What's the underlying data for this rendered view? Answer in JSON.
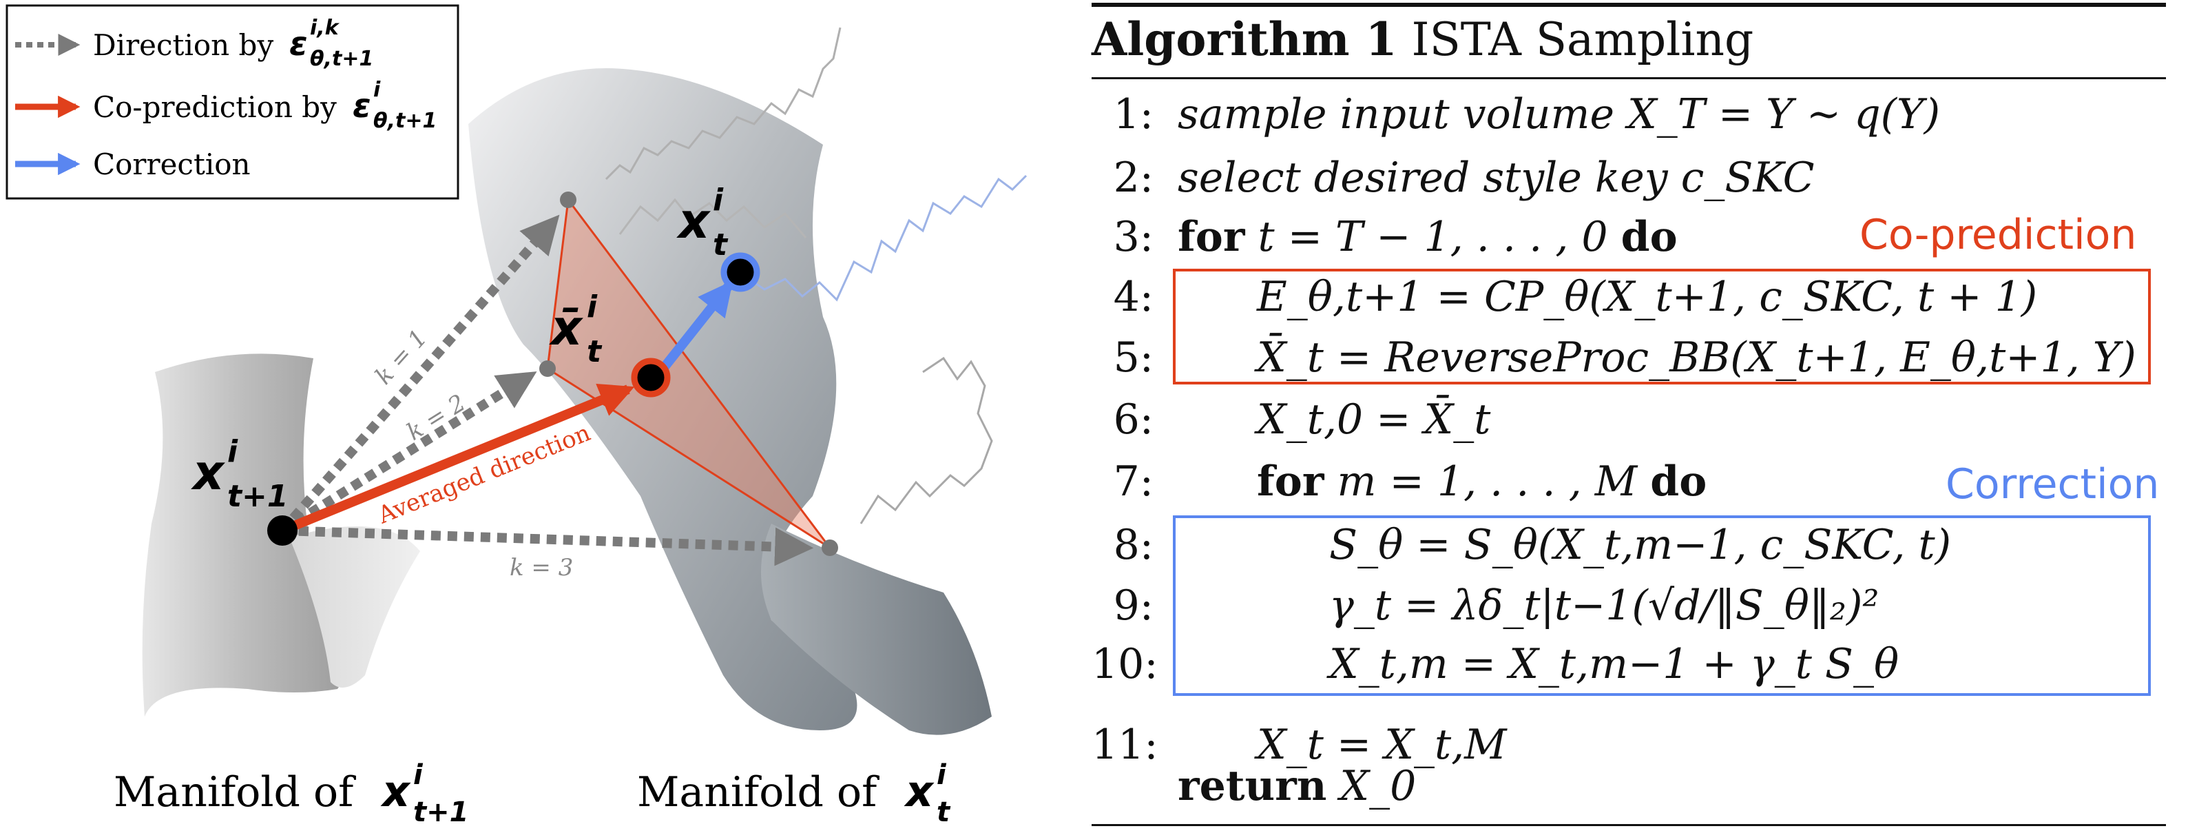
{
  "legend": {
    "items": [
      {
        "label": "Direction by ",
        "math": "ε",
        "sup": "i,k",
        "sub": "θ,t+1",
        "color": "#7a7a7a",
        "style": "dotted"
      },
      {
        "label": "Co-prediction by ",
        "math": "ε",
        "sup": "i",
        "sub": "θ,t+1",
        "color": "#e0401c",
        "style": "solid"
      },
      {
        "label": "Correction",
        "color": "#5a86f0",
        "style": "solid"
      }
    ]
  },
  "diagram": {
    "point_prev": {
      "base": "x",
      "sup": "i",
      "sub": "t+1"
    },
    "point_curr": {
      "base": "x",
      "sup": "i",
      "sub": "t"
    },
    "point_avg": {
      "base": "x̄",
      "sup": "i",
      "sub": "t"
    },
    "k_labels": [
      "k = 1",
      "k = 2",
      "k = 3"
    ],
    "averaged_label": "Averaged direction",
    "manifold_left": {
      "text": "Manifold of ",
      "base": "x",
      "sup": "i",
      "sub": "t+1"
    },
    "manifold_right": {
      "text": "Manifold of ",
      "base": "x",
      "sup": "i",
      "sub": "t"
    },
    "colors": {
      "orange": "#e0401c",
      "blue": "#5a86f0",
      "gray": "#7a7a7a"
    }
  },
  "algorithm": {
    "label": "Algorithm 1",
    "name": "ISTA Sampling",
    "lines": [
      {
        "num": "1:",
        "text": "sample input volume X_T = Y ∼ q(Y)"
      },
      {
        "num": "2:",
        "text": "select desired style key c_SKC"
      },
      {
        "num": "3:",
        "kw": "for",
        "text": " t = T − 1, . . . , 0 ",
        "kw2": "do"
      },
      {
        "num": "4:",
        "text": "E_θ,t+1 = CP_θ(X_t+1, c_SKC, t + 1)"
      },
      {
        "num": "5:",
        "text": "X̄_t = ReverseProc_BB(X_t+1, E_θ,t+1, Y)"
      },
      {
        "num": "6:",
        "text": "X_t,0 = X̄_t"
      },
      {
        "num": "7:",
        "kw": "for",
        "text": " m = 1, . . . , M ",
        "kw2": "do"
      },
      {
        "num": "8:",
        "text": "S_θ = S_θ(X_t,m−1, c_SKC, t)"
      },
      {
        "num": "9:",
        "text": "γ_t = λδ_t|t−1(√d/‖S_θ‖₂)²"
      },
      {
        "num": "10:",
        "text": "X_t,m = X_t,m−1 + γ_t S_θ"
      },
      {
        "num": "11:",
        "text": "X_t = X_t,M"
      },
      {
        "num": "",
        "kw": "return",
        "text": " X_0"
      }
    ],
    "box_coprediction": "Co-prediction",
    "box_correction": "Correction"
  }
}
